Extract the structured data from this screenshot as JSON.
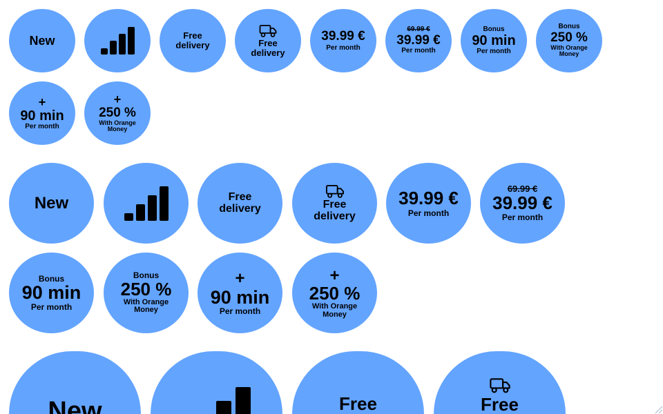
{
  "colors": {
    "badge_bg": "#63a4ff",
    "text": "#000000",
    "page_bg": "#ffffff"
  },
  "icons": {
    "signal": "signal-bars-icon",
    "truck": "delivery-truck-icon"
  },
  "labels": {
    "new": "New",
    "free": "Free",
    "delivery": "delivery",
    "price": "39.99 €",
    "old_price": "69.99 €",
    "per_month": "Per month",
    "bonus": "Bonus",
    "plus": "+",
    "min90": "90 min",
    "pct250": "250 %",
    "with_orange": "With Orange",
    "money": "Money"
  }
}
